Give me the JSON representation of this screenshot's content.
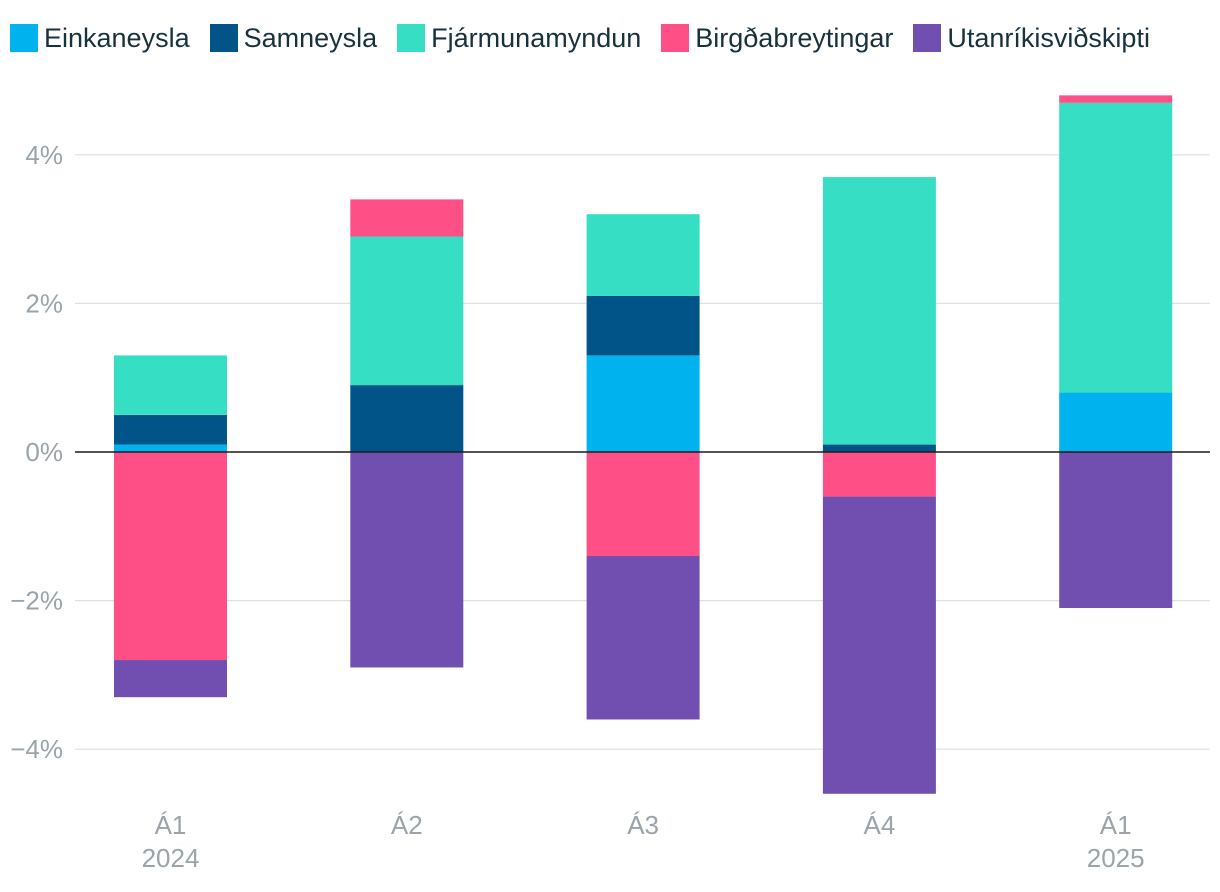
{
  "chart_data": {
    "type": "bar",
    "stacked": true,
    "title": "",
    "xlabel": "",
    "ylabel": "",
    "categories": [
      {
        "quarter": "Á1",
        "year": "2024"
      },
      {
        "quarter": "Á2",
        "year": ""
      },
      {
        "quarter": "Á3",
        "year": ""
      },
      {
        "quarter": "Á4",
        "year": ""
      },
      {
        "quarter": "Á1",
        "year": "2025"
      }
    ],
    "series": [
      {
        "name": "Einkaneysla",
        "color": "#00b2ee",
        "values": [
          0.1,
          0.0,
          1.3,
          0.0,
          0.8
        ]
      },
      {
        "name": "Samneysla",
        "color": "#005487",
        "values": [
          0.4,
          0.9,
          0.8,
          0.1,
          0.0
        ]
      },
      {
        "name": "Fjármunamyndun",
        "color": "#36dfc4",
        "values": [
          0.8,
          2.0,
          1.1,
          3.6,
          3.9
        ]
      },
      {
        "name": "Birgðabreytingar",
        "color": "#ff4f87",
        "values": [
          -2.8,
          0.5,
          -1.4,
          -0.6,
          0.1
        ]
      },
      {
        "name": "Utanríkisviðskipti",
        "color": "#714fb0",
        "values": [
          -0.5,
          -2.9,
          -2.2,
          -4.0,
          -2.1
        ]
      }
    ],
    "ylim": [
      -4.6,
      4.9
    ],
    "yticks": [
      {
        "value": 4,
        "label": "4%"
      },
      {
        "value": 2,
        "label": "2%"
      },
      {
        "value": 0,
        "label": "0%"
      },
      {
        "value": -2,
        "label": "−2%"
      },
      {
        "value": -4,
        "label": "−4%"
      }
    ],
    "grid": true,
    "legend_position": "top-left"
  }
}
